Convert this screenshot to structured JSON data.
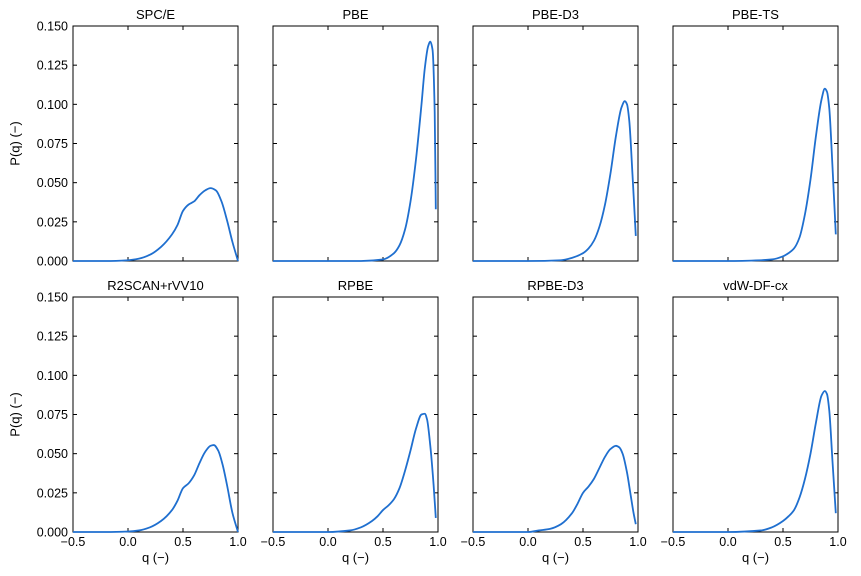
{
  "chart_data": {
    "type": "line",
    "layout": {
      "rows": 2,
      "cols": 4,
      "sharex": true,
      "sharey": true
    },
    "xlabel": "q (−)",
    "ylabel": "P(q) (−)",
    "xlim": [
      -0.5,
      1.0
    ],
    "ylim": [
      0.0,
      0.15
    ],
    "xticks": [
      -0.5,
      0.0,
      0.5,
      1.0
    ],
    "yticks": [
      0.0,
      0.025,
      0.05,
      0.075,
      0.1,
      0.125,
      0.15
    ],
    "xtick_labels": [
      "−0.5",
      "0.0",
      "0.5",
      "1.0"
    ],
    "ytick_labels": [
      "0.000",
      "0.025",
      "0.050",
      "0.075",
      "0.100",
      "0.125",
      "0.150"
    ],
    "line_color": "#1f6fcf",
    "grid": false,
    "panels": [
      {
        "title": "SPC/E",
        "x": [
          -0.5,
          -0.2,
          0.0,
          0.1,
          0.2,
          0.3,
          0.4,
          0.45,
          0.5,
          0.55,
          0.6,
          0.65,
          0.7,
          0.75,
          0.8,
          0.85,
          0.9,
          0.95,
          1.0
        ],
        "y": [
          0.0,
          0.0,
          0.0005,
          0.0015,
          0.004,
          0.009,
          0.017,
          0.023,
          0.032,
          0.036,
          0.038,
          0.042,
          0.045,
          0.0465,
          0.045,
          0.038,
          0.026,
          0.012,
          0.0
        ]
      },
      {
        "title": "PBE",
        "x": [
          -0.5,
          0.0,
          0.3,
          0.5,
          0.6,
          0.65,
          0.7,
          0.75,
          0.8,
          0.85,
          0.88,
          0.91,
          0.93,
          0.95,
          0.97,
          0.98
        ],
        "y": [
          0.0,
          0.0,
          0.0,
          0.001,
          0.005,
          0.01,
          0.02,
          0.038,
          0.065,
          0.1,
          0.123,
          0.137,
          0.14,
          0.135,
          0.095,
          0.033
        ]
      },
      {
        "title": "PBE-D3",
        "x": [
          -0.5,
          0.0,
          0.3,
          0.4,
          0.5,
          0.55,
          0.6,
          0.65,
          0.7,
          0.75,
          0.8,
          0.85,
          0.88,
          0.9,
          0.92,
          0.95,
          0.98
        ],
        "y": [
          0.0,
          0.0,
          0.0005,
          0.002,
          0.005,
          0.008,
          0.013,
          0.022,
          0.036,
          0.056,
          0.08,
          0.098,
          0.102,
          0.1,
          0.09,
          0.055,
          0.016
        ]
      },
      {
        "title": "PBE-TS",
        "x": [
          -0.5,
          0.0,
          0.3,
          0.4,
          0.5,
          0.55,
          0.6,
          0.65,
          0.7,
          0.75,
          0.8,
          0.85,
          0.88,
          0.9,
          0.92,
          0.95,
          0.98
        ],
        "y": [
          0.0,
          0.0,
          0.0005,
          0.001,
          0.003,
          0.005,
          0.008,
          0.015,
          0.03,
          0.052,
          0.08,
          0.103,
          0.11,
          0.108,
          0.098,
          0.06,
          0.017
        ]
      },
      {
        "title": "R2SCAN+rVV10",
        "x": [
          -0.5,
          -0.2,
          0.0,
          0.1,
          0.2,
          0.3,
          0.4,
          0.45,
          0.5,
          0.55,
          0.6,
          0.65,
          0.7,
          0.75,
          0.78,
          0.82,
          0.86,
          0.9,
          0.95,
          1.0
        ],
        "y": [
          0.0,
          0.0,
          0.0003,
          0.001,
          0.003,
          0.007,
          0.014,
          0.02,
          0.028,
          0.031,
          0.036,
          0.044,
          0.051,
          0.055,
          0.0555,
          0.052,
          0.043,
          0.03,
          0.012,
          0.0
        ]
      },
      {
        "title": "RPBE",
        "x": [
          -0.5,
          0.0,
          0.2,
          0.3,
          0.4,
          0.45,
          0.5,
          0.55,
          0.6,
          0.65,
          0.7,
          0.75,
          0.8,
          0.85,
          0.88,
          0.9,
          0.93,
          0.96,
          0.98
        ],
        "y": [
          0.0,
          0.0,
          0.001,
          0.003,
          0.007,
          0.01,
          0.014,
          0.017,
          0.021,
          0.028,
          0.039,
          0.052,
          0.066,
          0.075,
          0.0755,
          0.072,
          0.055,
          0.03,
          0.009
        ]
      },
      {
        "title": "RPBE-D3",
        "x": [
          -0.5,
          0.0,
          0.1,
          0.2,
          0.3,
          0.4,
          0.45,
          0.5,
          0.55,
          0.6,
          0.65,
          0.7,
          0.75,
          0.8,
          0.83,
          0.86,
          0.9,
          0.93,
          0.96,
          0.98
        ],
        "y": [
          0.0,
          0.0,
          0.001,
          0.002,
          0.005,
          0.012,
          0.018,
          0.025,
          0.029,
          0.034,
          0.041,
          0.048,
          0.053,
          0.055,
          0.054,
          0.05,
          0.038,
          0.025,
          0.012,
          0.005
        ]
      },
      {
        "title": "vdW-DF-cx",
        "x": [
          -0.5,
          0.0,
          0.3,
          0.4,
          0.5,
          0.55,
          0.6,
          0.65,
          0.7,
          0.75,
          0.8,
          0.85,
          0.88,
          0.9,
          0.92,
          0.95,
          0.98
        ],
        "y": [
          0.0,
          0.0,
          0.001,
          0.003,
          0.007,
          0.01,
          0.014,
          0.022,
          0.034,
          0.05,
          0.07,
          0.087,
          0.09,
          0.088,
          0.078,
          0.045,
          0.012
        ]
      }
    ]
  }
}
